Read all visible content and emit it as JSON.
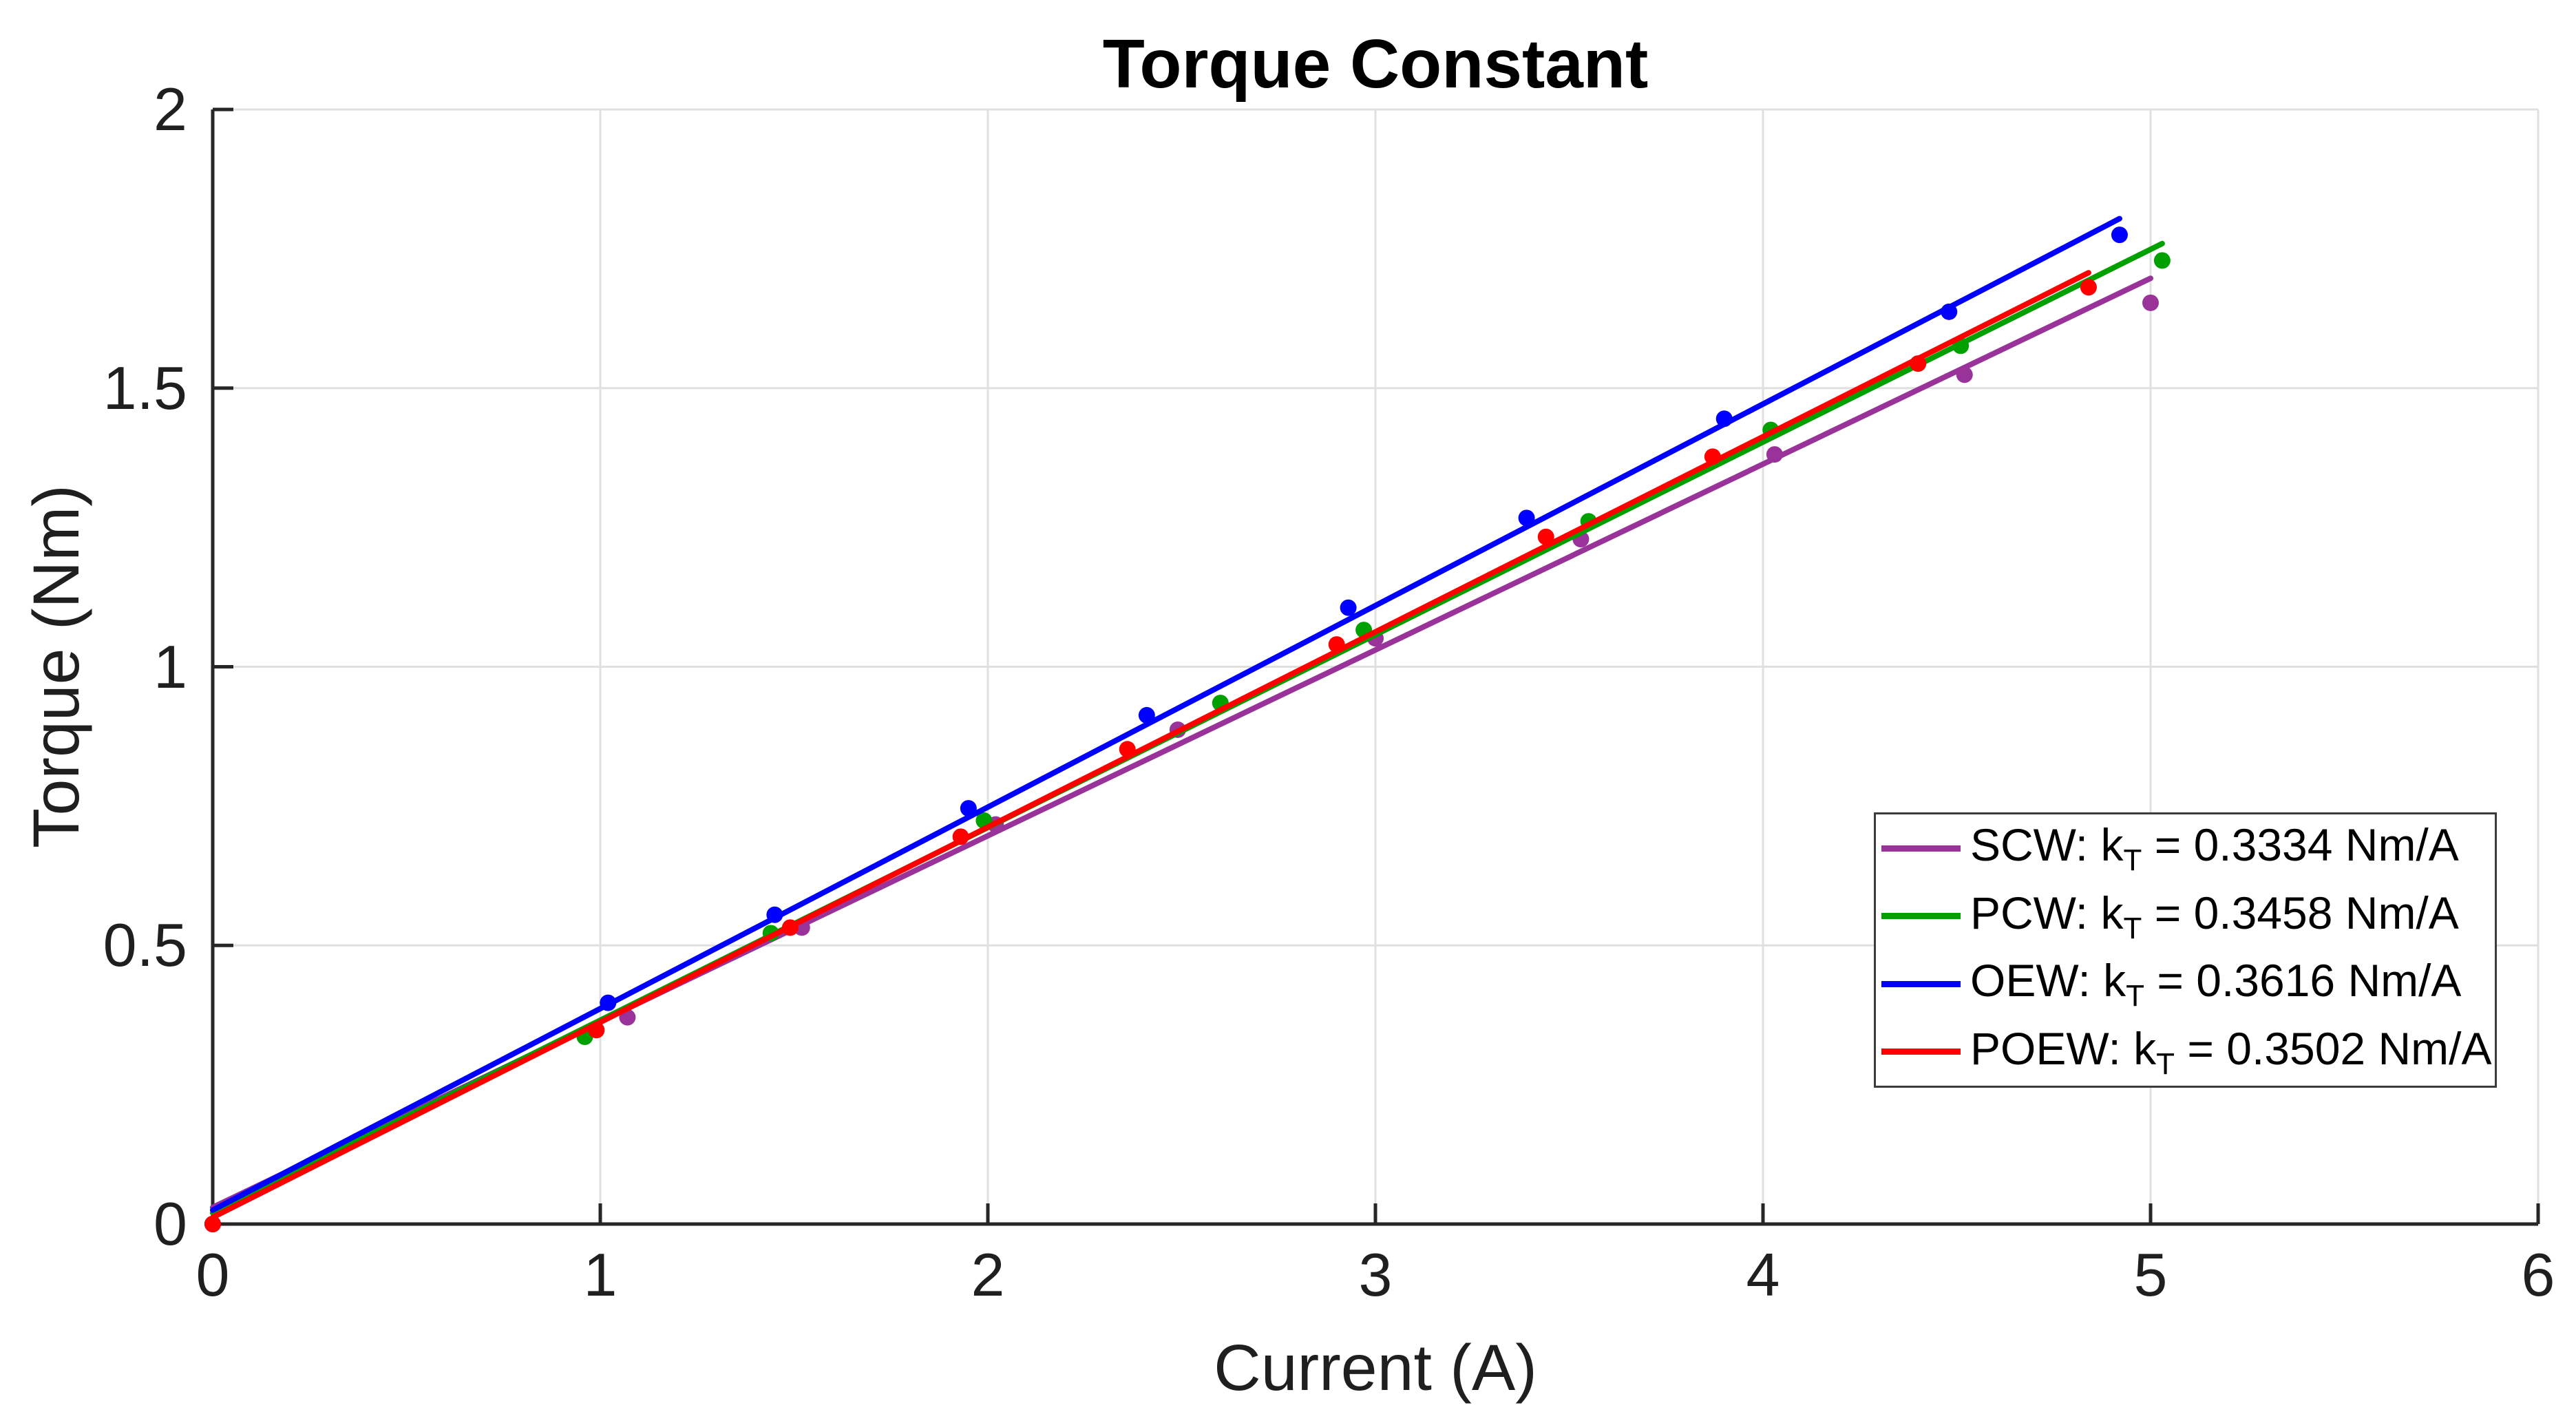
{
  "title": "Torque Constant",
  "chart_data": {
    "type": "scatter",
    "title": "Torque Constant",
    "xlabel": "Current (A)",
    "ylabel": "Torque (Nm)",
    "xlim": [
      0,
      6
    ],
    "ylim": [
      0,
      2
    ],
    "grid": true,
    "legend_position": "inside right, below center",
    "x_ticks": [
      0,
      1,
      2,
      3,
      4,
      5,
      6
    ],
    "x_tick_labels": [
      "0",
      "1",
      "2",
      "3",
      "4",
      "5",
      "6"
    ],
    "y_ticks": [
      0,
      0.5,
      1,
      1.5,
      2
    ],
    "y_tick_labels": [
      "0",
      "0.5",
      "1",
      "1.5",
      "2"
    ],
    "style": {
      "grid_color": "#e0e0e0",
      "axis_color": "#262626",
      "background": "#ffffff",
      "marker_radius": 12,
      "line_width": 8
    },
    "series": [
      {
        "name": "SCW",
        "color": "#993399",
        "kT": 0.3334,
        "legend_pre": "SCW: k",
        "legend_sub": "T",
        "legend_post": " = 0.3334 Nm/A",
        "fit": {
          "slope": 0.3334,
          "intercept": 0.03,
          "x_start": 0,
          "x_end": 5.0
        },
        "points": [
          [
            0,
            0
          ],
          [
            1.07,
            0.371
          ],
          [
            1.52,
            0.532
          ],
          [
            2.02,
            0.717
          ],
          [
            2.49,
            0.887
          ],
          [
            3.0,
            1.051
          ],
          [
            3.53,
            1.229
          ],
          [
            4.03,
            1.381
          ],
          [
            4.52,
            1.524
          ],
          [
            5.0,
            1.653
          ]
        ]
      },
      {
        "name": "PCW",
        "color": "#00a000",
        "kT": 0.3458,
        "legend_pre": "PCW: k",
        "legend_sub": "T",
        "legend_post": " = 0.3458 Nm/A",
        "fit": {
          "slope": 0.3458,
          "intercept": 0.02,
          "x_start": 0,
          "x_end": 5.03
        },
        "points": [
          [
            0,
            0
          ],
          [
            0.96,
            0.336
          ],
          [
            1.44,
            0.522
          ],
          [
            1.99,
            0.724
          ],
          [
            2.6,
            0.935
          ],
          [
            2.97,
            1.066
          ],
          [
            3.55,
            1.261
          ],
          [
            4.02,
            1.425
          ],
          [
            4.51,
            1.576
          ],
          [
            5.03,
            1.729
          ]
        ]
      },
      {
        "name": "OEW",
        "color": "#0000ff",
        "kT": 0.3616,
        "legend_pre": "OEW: k",
        "legend_sub": "T",
        "legend_post": " = 0.3616 Nm/A",
        "fit": {
          "slope": 0.3616,
          "intercept": 0.025,
          "x_start": 0,
          "x_end": 4.92
        },
        "points": [
          [
            0,
            0
          ],
          [
            1.02,
            0.397
          ],
          [
            1.45,
            0.555
          ],
          [
            1.95,
            0.746
          ],
          [
            2.41,
            0.913
          ],
          [
            2.93,
            1.106
          ],
          [
            3.39,
            1.267
          ],
          [
            3.9,
            1.445
          ],
          [
            4.48,
            1.637
          ],
          [
            4.92,
            1.775
          ]
        ]
      },
      {
        "name": "POEW",
        "color": "#ff0000",
        "kT": 0.3502,
        "legend_pre": "POEW: k",
        "legend_sub": "T",
        "legend_post": " = 0.3502 Nm/A",
        "fit": {
          "slope": 0.3502,
          "intercept": 0.012,
          "x_start": 0,
          "x_end": 4.84
        },
        "points": [
          [
            0,
            0
          ],
          [
            0.99,
            0.348
          ],
          [
            1.49,
            0.532
          ],
          [
            1.93,
            0.695
          ],
          [
            2.36,
            0.852
          ],
          [
            2.9,
            1.04
          ],
          [
            3.44,
            1.233
          ],
          [
            3.87,
            1.377
          ],
          [
            4.4,
            1.544
          ],
          [
            4.84,
            1.681
          ]
        ]
      }
    ]
  }
}
